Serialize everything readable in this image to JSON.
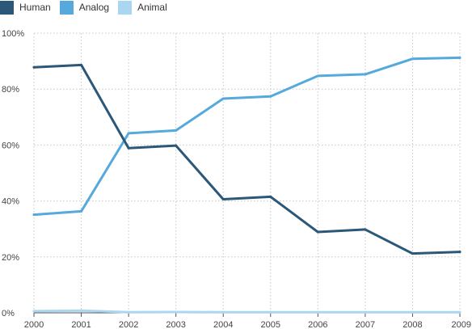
{
  "chart_data": {
    "type": "line",
    "x": [
      "2000",
      "2001",
      "2002",
      "2003",
      "2004",
      "2005",
      "2006",
      "2007",
      "2008",
      "2009"
    ],
    "series": [
      {
        "name": "Human",
        "color": "#2b5878",
        "values": [
          87.8,
          88.6,
          58.9,
          59.8,
          40.6,
          41.5,
          28.9,
          29.8,
          21.2,
          21.8
        ]
      },
      {
        "name": "Analog",
        "color": "#55a9dc",
        "values": [
          35.1,
          36.3,
          64.2,
          65.2,
          76.6,
          77.4,
          84.7,
          85.3,
          90.8,
          91.2
        ]
      },
      {
        "name": "Animal",
        "color": "#a9d7f2",
        "values": [
          0.6,
          0.8,
          0.2,
          0.3,
          0.2,
          0.2,
          0.2,
          0.2,
          0.2,
          0.2
        ]
      }
    ],
    "ylim": [
      0,
      100
    ],
    "yticks": [
      0,
      20,
      40,
      60,
      80,
      100
    ],
    "ytick_labels": [
      "0%",
      "20%",
      "40%",
      "60%",
      "80%",
      "100%"
    ],
    "title": "",
    "xlabel": "",
    "ylabel": "",
    "grid": true,
    "legend_position": "top-left"
  }
}
